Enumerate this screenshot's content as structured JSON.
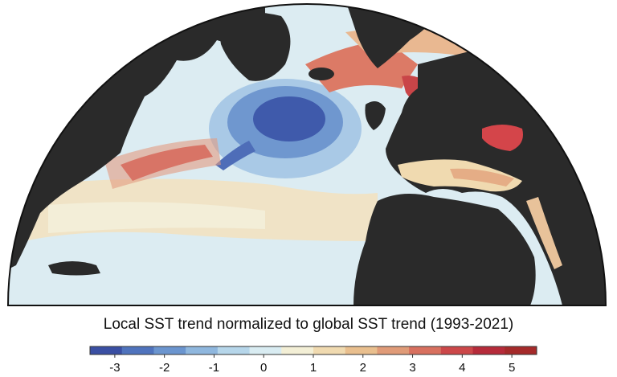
{
  "title": "Local SST trend normalized to global SST trend (1993-2021)",
  "colorbar": {
    "ticks": [
      -3,
      -2,
      -1,
      0,
      1,
      2,
      3,
      4,
      5
    ],
    "tick_labels": [
      "-3",
      "-2",
      "-1",
      "0",
      "1",
      "2",
      "3",
      "4",
      "5"
    ],
    "range": [
      -3.5,
      5.5
    ],
    "colors": [
      "#3a4fa3",
      "#4f73bd",
      "#6b95cf",
      "#8fb7de",
      "#b6d6ea",
      "#d9ecf2",
      "#f3efd6",
      "#f0dab0",
      "#e9bf8e",
      "#e09b78",
      "#d8705f",
      "#cc4749",
      "#b62b3a",
      "#a52a2a"
    ]
  },
  "palette": {
    "land": "#2a2a2a",
    "ocean_base": "#dcecf2",
    "cool_core": "#3a55a8",
    "warm_core": "#c93a40"
  }
}
